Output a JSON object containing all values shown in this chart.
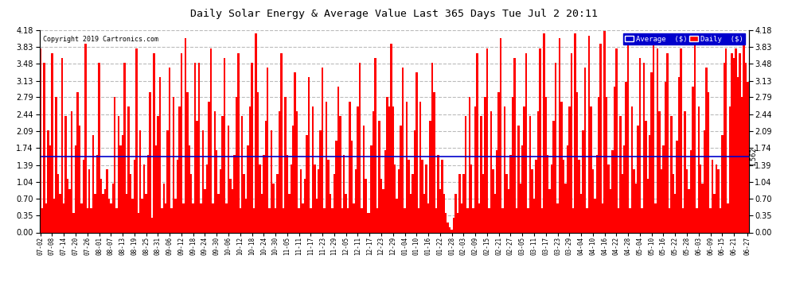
{
  "title": "Daily Solar Energy & Average Value Last 365 Days Tue Jul 2 20:11",
  "copyright": "Copyright 2019 Cartronics.com",
  "average_value": 1.562,
  "average_label": "Average  ($)",
  "daily_label": "Daily  ($)",
  "bar_color": "#FF0000",
  "average_line_color": "#0000CC",
  "background_color": "#FFFFFF",
  "plot_bg_color": "#FFFFFF",
  "grid_color": "#AAAAAA",
  "ylim": [
    0.0,
    4.18
  ],
  "yticks": [
    0.0,
    0.35,
    0.7,
    1.04,
    1.39,
    1.74,
    2.09,
    2.44,
    2.79,
    3.13,
    3.48,
    3.83,
    4.18
  ],
  "figsize": [
    9.9,
    3.75
  ],
  "dpi": 100,
  "xtick_labels": [
    "07-02",
    "07-08",
    "07-14",
    "07-20",
    "07-26",
    "08-01",
    "08-07",
    "08-13",
    "08-19",
    "08-25",
    "08-31",
    "09-06",
    "09-12",
    "09-18",
    "09-24",
    "09-30",
    "10-06",
    "10-12",
    "10-18",
    "10-24",
    "10-30",
    "11-05",
    "11-11",
    "11-17",
    "11-23",
    "11-29",
    "12-05",
    "12-11",
    "12-17",
    "12-23",
    "12-29",
    "01-04",
    "01-10",
    "01-16",
    "01-22",
    "01-28",
    "02-03",
    "02-09",
    "02-15",
    "02-21",
    "02-27",
    "03-05",
    "03-11",
    "03-17",
    "03-23",
    "03-29",
    "04-04",
    "04-10",
    "04-16",
    "04-22",
    "04-28",
    "05-04",
    "05-10",
    "05-16",
    "05-22",
    "05-28",
    "06-03",
    "06-09",
    "06-15",
    "06-21",
    "06-27"
  ],
  "bar_values": [
    3.8,
    0.5,
    3.5,
    0.6,
    2.1,
    1.8,
    3.7,
    0.7,
    2.8,
    1.2,
    0.8,
    3.6,
    0.6,
    2.4,
    1.1,
    0.9,
    2.5,
    0.4,
    1.8,
    2.9,
    2.2,
    0.6,
    1.5,
    3.9,
    0.5,
    1.3,
    0.5,
    2.0,
    0.8,
    1.6,
    3.5,
    1.1,
    0.8,
    0.9,
    1.3,
    0.7,
    0.6,
    1.0,
    2.8,
    0.5,
    2.4,
    1.8,
    2.0,
    3.5,
    0.8,
    2.6,
    1.2,
    0.7,
    1.5,
    3.8,
    0.4,
    2.1,
    0.7,
    1.4,
    0.8,
    1.6,
    2.9,
    0.3,
    3.7,
    1.8,
    2.4,
    3.2,
    0.5,
    1.0,
    0.6,
    2.1,
    3.4,
    0.5,
    2.8,
    0.7,
    1.5,
    2.6,
    3.7,
    0.6,
    4.0,
    2.9,
    1.8,
    1.2,
    0.6,
    3.5,
    2.3,
    3.5,
    0.6,
    2.1,
    0.9,
    1.4,
    2.7,
    3.8,
    0.6,
    2.5,
    1.7,
    0.8,
    1.3,
    2.4,
    3.6,
    0.6,
    2.2,
    1.1,
    0.9,
    1.6,
    2.8,
    3.7,
    0.5,
    2.4,
    1.2,
    0.7,
    1.8,
    2.6,
    3.5,
    0.5,
    4.1,
    2.9,
    1.4,
    0.8,
    1.6,
    2.3,
    3.4,
    0.5,
    2.1,
    1.0,
    0.5,
    1.2,
    2.5,
    3.7,
    0.5,
    2.8,
    1.6,
    0.8,
    1.4,
    2.2,
    3.3,
    2.5,
    0.5,
    1.3,
    0.6,
    1.1,
    2.0,
    3.2,
    0.5,
    2.6,
    1.4,
    0.7,
    1.3,
    2.1,
    3.4,
    0.5,
    2.7,
    1.5,
    0.8,
    0.5,
    1.2,
    1.9,
    3.0,
    2.4,
    0.5,
    1.6,
    0.8,
    0.5,
    2.7,
    1.9,
    0.6,
    1.3,
    2.6,
    3.5,
    0.5,
    2.2,
    1.1,
    0.4,
    0.4,
    1.8,
    2.5,
    3.6,
    0.5,
    2.3,
    1.1,
    0.9,
    1.7,
    2.8,
    2.6,
    3.9,
    2.6,
    1.4,
    0.7,
    1.3,
    2.2,
    3.4,
    0.5,
    2.7,
    1.5,
    0.8,
    1.2,
    2.1,
    3.3,
    0.5,
    2.7,
    1.5,
    0.8,
    1.4,
    0.6,
    2.3,
    3.5,
    2.9,
    0.5,
    1.6,
    0.9,
    1.5,
    0.8,
    0.4,
    0.2,
    0.1,
    0.06,
    0.3,
    0.8,
    0.4,
    1.2,
    0.6,
    1.2,
    2.4,
    0.5,
    2.8,
    1.4,
    0.5,
    2.6,
    3.7,
    0.6,
    2.4,
    1.2,
    2.8,
    3.8,
    0.5,
    2.5,
    1.3,
    0.8,
    1.7,
    2.9,
    4.0,
    0.5,
    2.6,
    1.2,
    0.9,
    1.6,
    2.8,
    3.6,
    0.5,
    2.2,
    1.0,
    1.8,
    2.6,
    3.7,
    0.5,
    2.4,
    1.3,
    0.7,
    1.5,
    2.5,
    3.8,
    0.5,
    4.1,
    2.8,
    1.6,
    0.9,
    1.4,
    2.3,
    3.5,
    0.6,
    4.0,
    2.7,
    1.5,
    1.0,
    1.8,
    2.6,
    3.7,
    0.5,
    4.1,
    2.9,
    1.5,
    0.8,
    2.1,
    3.4,
    0.5,
    4.05,
    2.6,
    1.3,
    0.7,
    1.6,
    2.8,
    3.9,
    0.6,
    4.15,
    2.8,
    1.4,
    0.9,
    1.7,
    3.0,
    3.8,
    0.5,
    2.4,
    1.2,
    1.8,
    3.1,
    3.9,
    0.5,
    2.6,
    1.3,
    1.0,
    2.2,
    3.6,
    0.5,
    3.5,
    2.3,
    1.1,
    2.0,
    3.3,
    4.0,
    0.6,
    3.8,
    2.5,
    1.3,
    1.8,
    3.1,
    3.7,
    0.5,
    2.4,
    1.2,
    0.8,
    1.9,
    3.2,
    3.8,
    0.5,
    2.5,
    1.3,
    0.9,
    1.7,
    3.0,
    3.9,
    0.5,
    2.6,
    1.4,
    1.0,
    2.1,
    3.4,
    2.9,
    0.5,
    1.5,
    0.8,
    1.4,
    1.3,
    0.5,
    2.0,
    3.5,
    3.8,
    0.6,
    2.6,
    3.7,
    3.6,
    3.8,
    3.2,
    3.7,
    2.8,
    3.9,
    3.5,
    3.1
  ]
}
